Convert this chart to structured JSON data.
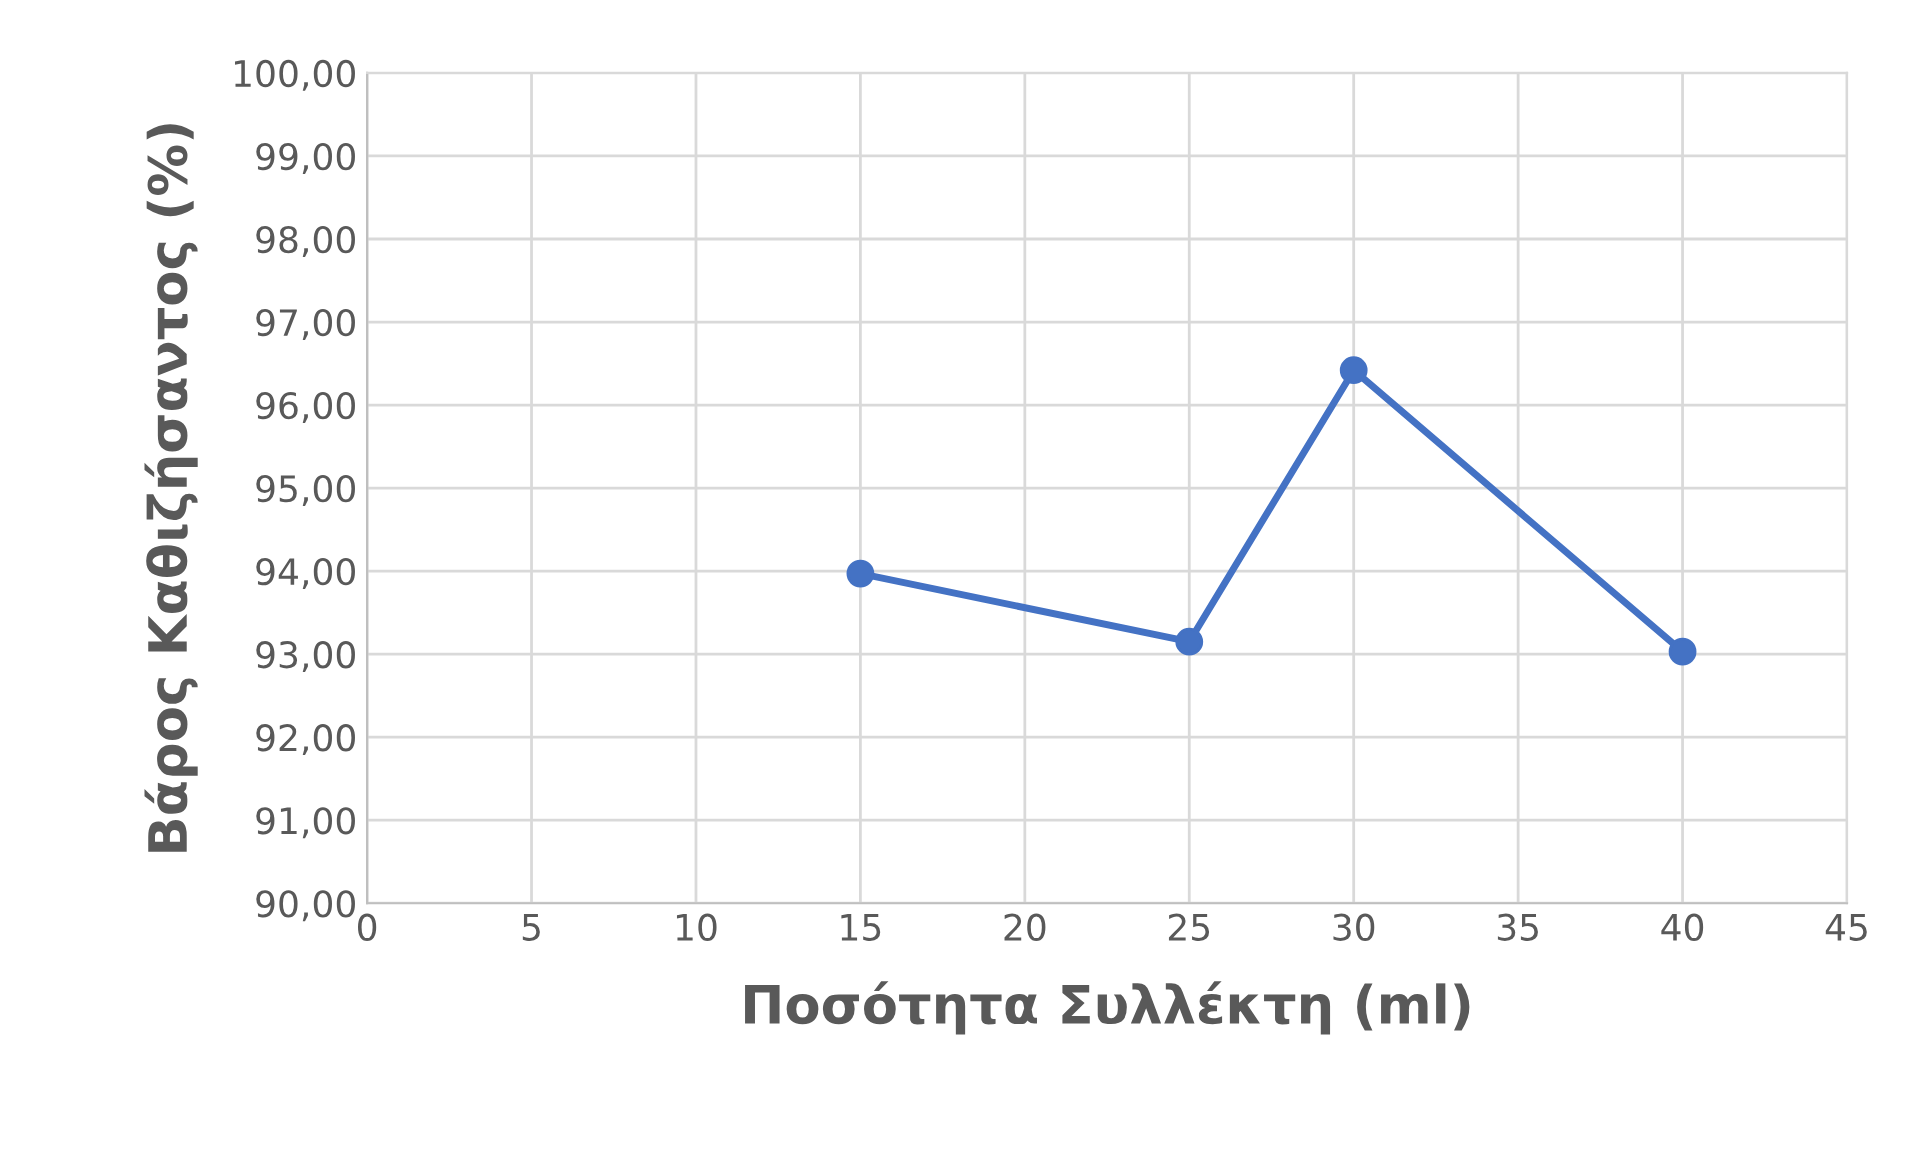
{
  "chart_data": {
    "type": "line",
    "xlabel": "Ποσότητα Συλλέκτη (ml)",
    "ylabel": "Βάρος Καθιζήσαντος (%)",
    "x": [
      15,
      25,
      30,
      40
    ],
    "series": [
      {
        "color": "#4472c4",
        "values": [
          93.97,
          93.15,
          96.42,
          93.03
        ]
      }
    ],
    "xlim": [
      0,
      45
    ],
    "xticks": [
      0,
      5,
      10,
      15,
      20,
      25,
      30,
      35,
      40,
      45
    ],
    "ylim": [
      90,
      100
    ],
    "yticks": [
      {
        "value": 90,
        "label": "90,00"
      },
      {
        "value": 91,
        "label": "91,00"
      },
      {
        "value": 92,
        "label": "92,00"
      },
      {
        "value": 93,
        "label": "93,00"
      },
      {
        "value": 94,
        "label": "94,00"
      },
      {
        "value": 95,
        "label": "95,00"
      },
      {
        "value": 96,
        "label": "96,00"
      },
      {
        "value": 97,
        "label": "97,00"
      },
      {
        "value": 98,
        "label": "98,00"
      },
      {
        "value": 99,
        "label": "99,00"
      },
      {
        "value": 100,
        "label": "100,00"
      }
    ],
    "grid": true,
    "marker": "circle",
    "line_style": "solid"
  }
}
